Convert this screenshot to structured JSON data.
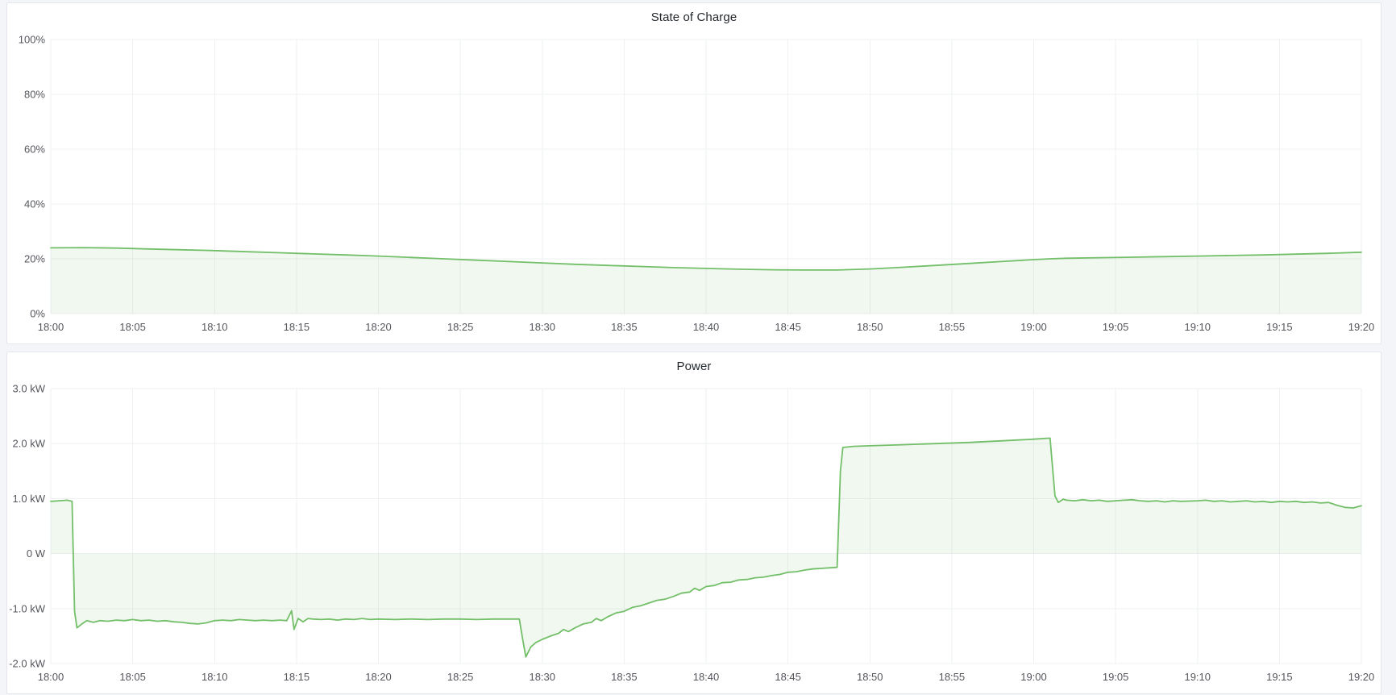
{
  "page": {
    "background_color": "#f4f5f9",
    "panel_border_color": "#e3e6ec"
  },
  "panels": [
    {
      "title": "State of Charge"
    },
    {
      "title": "Power"
    }
  ],
  "chart_data": [
    {
      "type": "area",
      "title": "State of Charge",
      "xlabel": "",
      "ylabel": "",
      "grid": true,
      "legend": "none",
      "line_color": "#73bf69",
      "fill_color": "rgba(115,191,105,0.10)",
      "baseline": 0,
      "xlim": [
        0,
        80
      ],
      "ylim": [
        0,
        100
      ],
      "x_ticks": [
        {
          "m": 0,
          "label": "18:00"
        },
        {
          "m": 5,
          "label": "18:05"
        },
        {
          "m": 10,
          "label": "18:10"
        },
        {
          "m": 15,
          "label": "18:15"
        },
        {
          "m": 20,
          "label": "18:20"
        },
        {
          "m": 25,
          "label": "18:25"
        },
        {
          "m": 30,
          "label": "18:30"
        },
        {
          "m": 35,
          "label": "18:35"
        },
        {
          "m": 40,
          "label": "18:40"
        },
        {
          "m": 45,
          "label": "18:45"
        },
        {
          "m": 50,
          "label": "18:50"
        },
        {
          "m": 55,
          "label": "18:55"
        },
        {
          "m": 60,
          "label": "19:00"
        },
        {
          "m": 65,
          "label": "19:05"
        },
        {
          "m": 70,
          "label": "19:10"
        },
        {
          "m": 75,
          "label": "19:15"
        },
        {
          "m": 80,
          "label": "19:20"
        }
      ],
      "y_ticks": [
        {
          "v": 0,
          "label": "0%"
        },
        {
          "v": 20,
          "label": "20%"
        },
        {
          "v": 40,
          "label": "40%"
        },
        {
          "v": 60,
          "label": "60%"
        },
        {
          "v": 80,
          "label": "80%"
        },
        {
          "v": 100,
          "label": "100%"
        }
      ],
      "series": [
        {
          "name": "State of Charge",
          "points": [
            [
              0,
              24.0
            ],
            [
              2,
              24.1
            ],
            [
              4,
              23.9
            ],
            [
              6,
              23.6
            ],
            [
              8,
              23.3
            ],
            [
              10,
              23.0
            ],
            [
              12,
              22.6
            ],
            [
              14,
              22.2
            ],
            [
              16,
              21.8
            ],
            [
              18,
              21.4
            ],
            [
              20,
              21.0
            ],
            [
              22,
              20.5
            ],
            [
              24,
              20.0
            ],
            [
              26,
              19.5
            ],
            [
              28,
              19.0
            ],
            [
              30,
              18.5
            ],
            [
              32,
              18.0
            ],
            [
              34,
              17.6
            ],
            [
              36,
              17.2
            ],
            [
              38,
              16.8
            ],
            [
              40,
              16.5
            ],
            [
              42,
              16.2
            ],
            [
              44,
              16.0
            ],
            [
              46,
              15.9
            ],
            [
              48,
              15.9
            ],
            [
              50,
              16.3
            ],
            [
              52,
              16.9
            ],
            [
              54,
              17.6
            ],
            [
              56,
              18.3
            ],
            [
              58,
              19.0
            ],
            [
              60,
              19.7
            ],
            [
              61,
              20.0
            ],
            [
              62,
              20.2
            ],
            [
              64,
              20.4
            ],
            [
              66,
              20.6
            ],
            [
              68,
              20.8
            ],
            [
              70,
              21.0
            ],
            [
              72,
              21.2
            ],
            [
              74,
              21.4
            ],
            [
              76,
              21.7
            ],
            [
              78,
              22.0
            ],
            [
              80,
              22.4
            ]
          ]
        }
      ]
    },
    {
      "type": "area",
      "title": "Power",
      "xlabel": "",
      "ylabel": "",
      "grid": true,
      "legend": "none",
      "line_color": "#73bf69",
      "fill_color": "rgba(115,191,105,0.10)",
      "baseline": 0,
      "xlim": [
        0,
        80
      ],
      "ylim": [
        -2,
        3
      ],
      "x_ticks": [
        {
          "m": 0,
          "label": "18:00"
        },
        {
          "m": 5,
          "label": "18:05"
        },
        {
          "m": 10,
          "label": "18:10"
        },
        {
          "m": 15,
          "label": "18:15"
        },
        {
          "m": 20,
          "label": "18:20"
        },
        {
          "m": 25,
          "label": "18:25"
        },
        {
          "m": 30,
          "label": "18:30"
        },
        {
          "m": 35,
          "label": "18:35"
        },
        {
          "m": 40,
          "label": "18:40"
        },
        {
          "m": 45,
          "label": "18:45"
        },
        {
          "m": 50,
          "label": "18:50"
        },
        {
          "m": 55,
          "label": "18:55"
        },
        {
          "m": 60,
          "label": "19:00"
        },
        {
          "m": 65,
          "label": "19:05"
        },
        {
          "m": 70,
          "label": "19:10"
        },
        {
          "m": 75,
          "label": "19:15"
        },
        {
          "m": 80,
          "label": "19:20"
        }
      ],
      "y_ticks": [
        {
          "v": -2,
          "label": "-2.0 kW"
        },
        {
          "v": -1,
          "label": "-1.0 kW"
        },
        {
          "v": 0,
          "label": "0 W"
        },
        {
          "v": 1,
          "label": "1.0 kW"
        },
        {
          "v": 2,
          "label": "2.0 kW"
        },
        {
          "v": 3,
          "label": "3.0 kW"
        }
      ],
      "series": [
        {
          "name": "Power",
          "points": [
            [
              0,
              0.95
            ],
            [
              0.5,
              0.96
            ],
            [
              1,
              0.97
            ],
            [
              1.3,
              0.95
            ],
            [
              1.45,
              -1.05
            ],
            [
              1.6,
              -1.35
            ],
            [
              1.9,
              -1.28
            ],
            [
              2.2,
              -1.22
            ],
            [
              2.6,
              -1.25
            ],
            [
              3,
              -1.22
            ],
            [
              3.5,
              -1.23
            ],
            [
              4,
              -1.21
            ],
            [
              4.5,
              -1.22
            ],
            [
              5,
              -1.2
            ],
            [
              5.5,
              -1.22
            ],
            [
              6,
              -1.21
            ],
            [
              6.5,
              -1.23
            ],
            [
              7,
              -1.22
            ],
            [
              7.5,
              -1.24
            ],
            [
              8,
              -1.25
            ],
            [
              8.5,
              -1.27
            ],
            [
              9,
              -1.28
            ],
            [
              9.5,
              -1.26
            ],
            [
              10,
              -1.22
            ],
            [
              10.5,
              -1.21
            ],
            [
              11,
              -1.22
            ],
            [
              11.5,
              -1.2
            ],
            [
              12,
              -1.21
            ],
            [
              12.5,
              -1.22
            ],
            [
              13,
              -1.21
            ],
            [
              13.5,
              -1.22
            ],
            [
              14,
              -1.21
            ],
            [
              14.4,
              -1.22
            ],
            [
              14.7,
              -1.04
            ],
            [
              14.85,
              -1.38
            ],
            [
              15.1,
              -1.18
            ],
            [
              15.4,
              -1.24
            ],
            [
              15.7,
              -1.18
            ],
            [
              16,
              -1.19
            ],
            [
              16.5,
              -1.2
            ],
            [
              17,
              -1.19
            ],
            [
              17.5,
              -1.21
            ],
            [
              18,
              -1.19
            ],
            [
              18.5,
              -1.2
            ],
            [
              19,
              -1.18
            ],
            [
              19.5,
              -1.2
            ],
            [
              20,
              -1.19
            ],
            [
              21,
              -1.2
            ],
            [
              22,
              -1.19
            ],
            [
              23,
              -1.2
            ],
            [
              24,
              -1.19
            ],
            [
              25,
              -1.19
            ],
            [
              26,
              -1.2
            ],
            [
              27,
              -1.19
            ],
            [
              28,
              -1.19
            ],
            [
              28.6,
              -1.19
            ],
            [
              28.8,
              -1.55
            ],
            [
              29,
              -1.88
            ],
            [
              29.3,
              -1.7
            ],
            [
              29.6,
              -1.62
            ],
            [
              30,
              -1.56
            ],
            [
              30.5,
              -1.5
            ],
            [
              31,
              -1.45
            ],
            [
              31.3,
              -1.38
            ],
            [
              31.6,
              -1.42
            ],
            [
              32,
              -1.35
            ],
            [
              32.5,
              -1.28
            ],
            [
              33,
              -1.25
            ],
            [
              33.3,
              -1.18
            ],
            [
              33.6,
              -1.22
            ],
            [
              34,
              -1.15
            ],
            [
              34.5,
              -1.08
            ],
            [
              35,
              -1.05
            ],
            [
              35.5,
              -0.98
            ],
            [
              36,
              -0.95
            ],
            [
              36.5,
              -0.9
            ],
            [
              37,
              -0.85
            ],
            [
              37.5,
              -0.83
            ],
            [
              38,
              -0.78
            ],
            [
              38.5,
              -0.72
            ],
            [
              39,
              -0.7
            ],
            [
              39.3,
              -0.63
            ],
            [
              39.6,
              -0.67
            ],
            [
              40,
              -0.6
            ],
            [
              40.5,
              -0.58
            ],
            [
              41,
              -0.53
            ],
            [
              41.5,
              -0.52
            ],
            [
              42,
              -0.48
            ],
            [
              42.5,
              -0.47
            ],
            [
              43,
              -0.44
            ],
            [
              43.5,
              -0.43
            ],
            [
              44,
              -0.4
            ],
            [
              44.5,
              -0.38
            ],
            [
              45,
              -0.34
            ],
            [
              45.5,
              -0.33
            ],
            [
              46,
              -0.3
            ],
            [
              46.5,
              -0.28
            ],
            [
              47,
              -0.27
            ],
            [
              47.5,
              -0.26
            ],
            [
              48,
              -0.25
            ],
            [
              48.2,
              1.5
            ],
            [
              48.35,
              1.93
            ],
            [
              49,
              1.95
            ],
            [
              50,
              1.96
            ],
            [
              52,
              1.98
            ],
            [
              54,
              2.0
            ],
            [
              56,
              2.02
            ],
            [
              58,
              2.05
            ],
            [
              60,
              2.08
            ],
            [
              61,
              2.1
            ],
            [
              61.3,
              1.05
            ],
            [
              61.5,
              0.93
            ],
            [
              61.8,
              0.99
            ],
            [
              62,
              0.97
            ],
            [
              62.5,
              0.96
            ],
            [
              63,
              0.98
            ],
            [
              63.5,
              0.96
            ],
            [
              64,
              0.97
            ],
            [
              64.5,
              0.95
            ],
            [
              65,
              0.96
            ],
            [
              65.5,
              0.97
            ],
            [
              66,
              0.98
            ],
            [
              66.5,
              0.96
            ],
            [
              67,
              0.95
            ],
            [
              67.5,
              0.96
            ],
            [
              68,
              0.94
            ],
            [
              68.5,
              0.96
            ],
            [
              69,
              0.95
            ],
            [
              70,
              0.96
            ],
            [
              70.5,
              0.97
            ],
            [
              71,
              0.95
            ],
            [
              71.5,
              0.96
            ],
            [
              72,
              0.94
            ],
            [
              72.5,
              0.95
            ],
            [
              73,
              0.96
            ],
            [
              73.5,
              0.94
            ],
            [
              74,
              0.95
            ],
            [
              74.5,
              0.93
            ],
            [
              75,
              0.95
            ],
            [
              75.5,
              0.94
            ],
            [
              76,
              0.95
            ],
            [
              76.5,
              0.93
            ],
            [
              77,
              0.94
            ],
            [
              77.5,
              0.92
            ],
            [
              78,
              0.93
            ],
            [
              78.5,
              0.88
            ],
            [
              79,
              0.84
            ],
            [
              79.5,
              0.83
            ],
            [
              80,
              0.87
            ]
          ]
        }
      ]
    }
  ]
}
